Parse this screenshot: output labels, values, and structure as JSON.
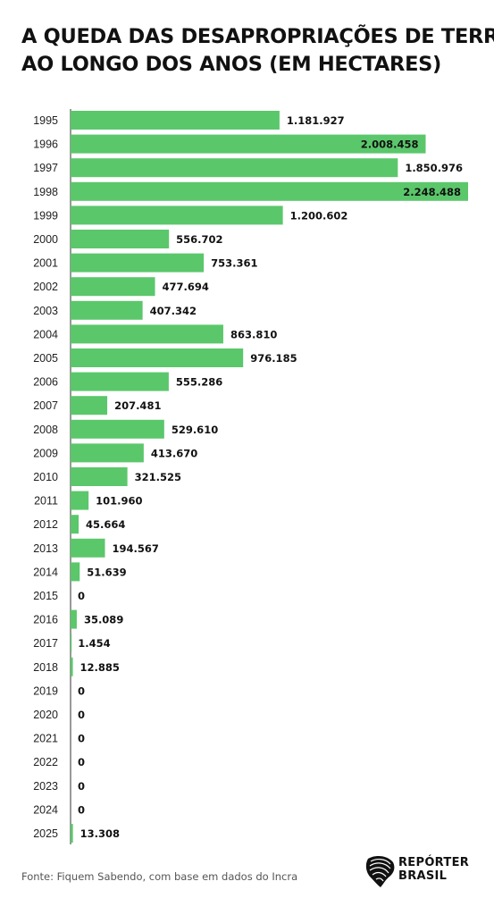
{
  "title_lines": [
    "A QUEDA DAS DESAPROPRIAÇÕES DE TERRA",
    "AO LONGO DOS ANOS  (EM HECTARES)"
  ],
  "source": "Fonte: Fiquem Sabendo, com base em dados do Incra",
  "logo": {
    "line1": "REPÓRTER",
    "line2": "BRASIL"
  },
  "colors": {
    "bar": "#5bc76b",
    "text": "#111111",
    "axis": "#333333"
  },
  "chart_data": {
    "type": "bar",
    "orientation": "horizontal",
    "categories": [
      "1995",
      "1996",
      "1997",
      "1998",
      "1999",
      "2000",
      "2001",
      "2002",
      "2003",
      "2004",
      "2005",
      "2006",
      "2007",
      "2008",
      "2009",
      "2010",
      "2011",
      "2012",
      "2013",
      "2014",
      "2015",
      "2016",
      "2017",
      "2018",
      "2019",
      "2020",
      "2021",
      "2022",
      "2023",
      "2024",
      "2025"
    ],
    "values": [
      1181927,
      2008458,
      1850976,
      2248488,
      1200602,
      556702,
      753361,
      477694,
      407342,
      863810,
      976185,
      555286,
      207481,
      529610,
      413670,
      321525,
      101960,
      45664,
      194567,
      51639,
      0,
      35089,
      1454,
      12885,
      0,
      0,
      0,
      0,
      0,
      0,
      13308
    ],
    "labels": [
      "1.181.927",
      "2.008.458",
      "1.850.976",
      "2.248.488",
      "1.200.602",
      "556.702",
      "753.361",
      "477.694",
      "407.342",
      "863.810",
      "976.185",
      "555.286",
      "207.481",
      "529.610",
      "413.670",
      "321.525",
      "101.960",
      "45.664",
      "194.567",
      "51.639",
      "0",
      "35.089",
      "1.454",
      "12.885",
      "0",
      "0",
      "0",
      "0",
      "0",
      "0",
      "13.308"
    ],
    "inside_label_indices": [
      1,
      3
    ],
    "xlim": [
      0,
      2248488
    ],
    "title": "A QUEDA DAS DESAPROPRIAÇÕES DE TERRA AO LONGO DOS ANOS  (EM HECTARES)",
    "grid": false
  }
}
